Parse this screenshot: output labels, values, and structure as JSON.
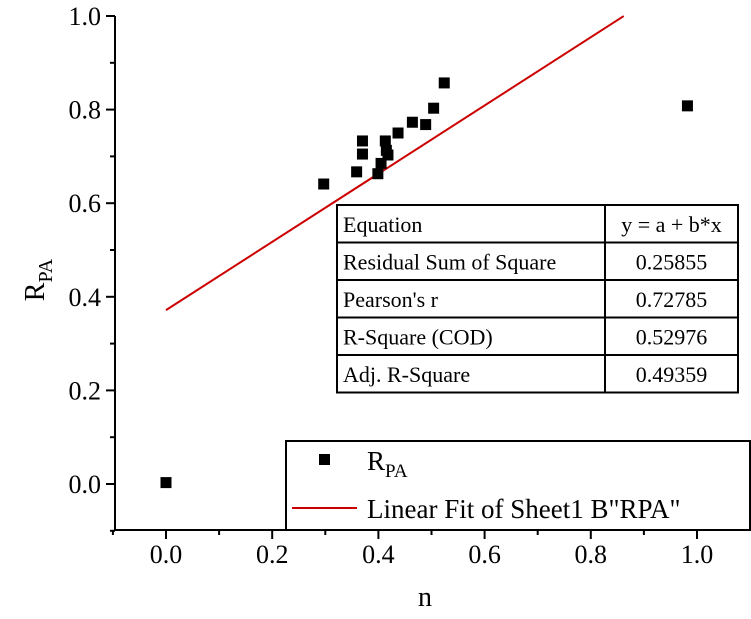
{
  "chart_data": {
    "type": "scatter",
    "xlabel": "n",
    "ylabel_main": "R",
    "ylabel_sub": "PA",
    "xlim": [
      -0.09,
      1.07
    ],
    "ylim": [
      -0.09,
      1.0
    ],
    "xticks": [
      0.0,
      0.2,
      0.4,
      0.6,
      0.8,
      1.0
    ],
    "xtick_labels": [
      "0.0",
      "0.2",
      "0.4",
      "0.6",
      "0.8",
      "1.0"
    ],
    "yticks": [
      0.0,
      0.2,
      0.4,
      0.6,
      0.8,
      1.0
    ],
    "ytick_labels": [
      "0.0",
      "0.2",
      "0.4",
      "0.6",
      "0.8",
      "1.0"
    ],
    "series": [
      {
        "name": "RPA",
        "legend_main": "R",
        "legend_sub": "PA",
        "marker": "square",
        "color": "#000000",
        "points": [
          [
            0.0,
            0.003
          ],
          [
            0.297,
            0.641
          ],
          [
            0.359,
            0.667
          ],
          [
            0.37,
            0.733
          ],
          [
            0.37,
            0.705
          ],
          [
            0.399,
            0.663
          ],
          [
            0.405,
            0.685
          ],
          [
            0.413,
            0.733
          ],
          [
            0.415,
            0.713
          ],
          [
            0.418,
            0.703
          ],
          [
            0.437,
            0.75
          ],
          [
            0.464,
            0.773
          ],
          [
            0.489,
            0.768
          ],
          [
            0.504,
            0.803
          ],
          [
            0.524,
            0.857
          ],
          [
            0.982,
            0.808
          ]
        ]
      },
      {
        "name": "Linear Fit of Sheet1 B\"RPA\"",
        "type": "line",
        "color": "#cc0000",
        "intercept": 0.3715,
        "slope": 0.7289,
        "x_range": [
          0.0,
          0.862
        ]
      }
    ],
    "legend": {
      "position": "bottom-right",
      "entries": [
        "RPA",
        "Linear Fit of Sheet1 B\"RPA\""
      ]
    },
    "stats_table": {
      "position": "middle-right",
      "rows": [
        [
          "Equation",
          "y = a + b*x"
        ],
        [
          "Residual Sum of Square",
          "0.25855"
        ],
        [
          "Pearson's r",
          "0.72785"
        ],
        [
          "R-Square (COD)",
          "0.52976"
        ],
        [
          "Adj. R-Square",
          "0.49359"
        ]
      ]
    }
  }
}
